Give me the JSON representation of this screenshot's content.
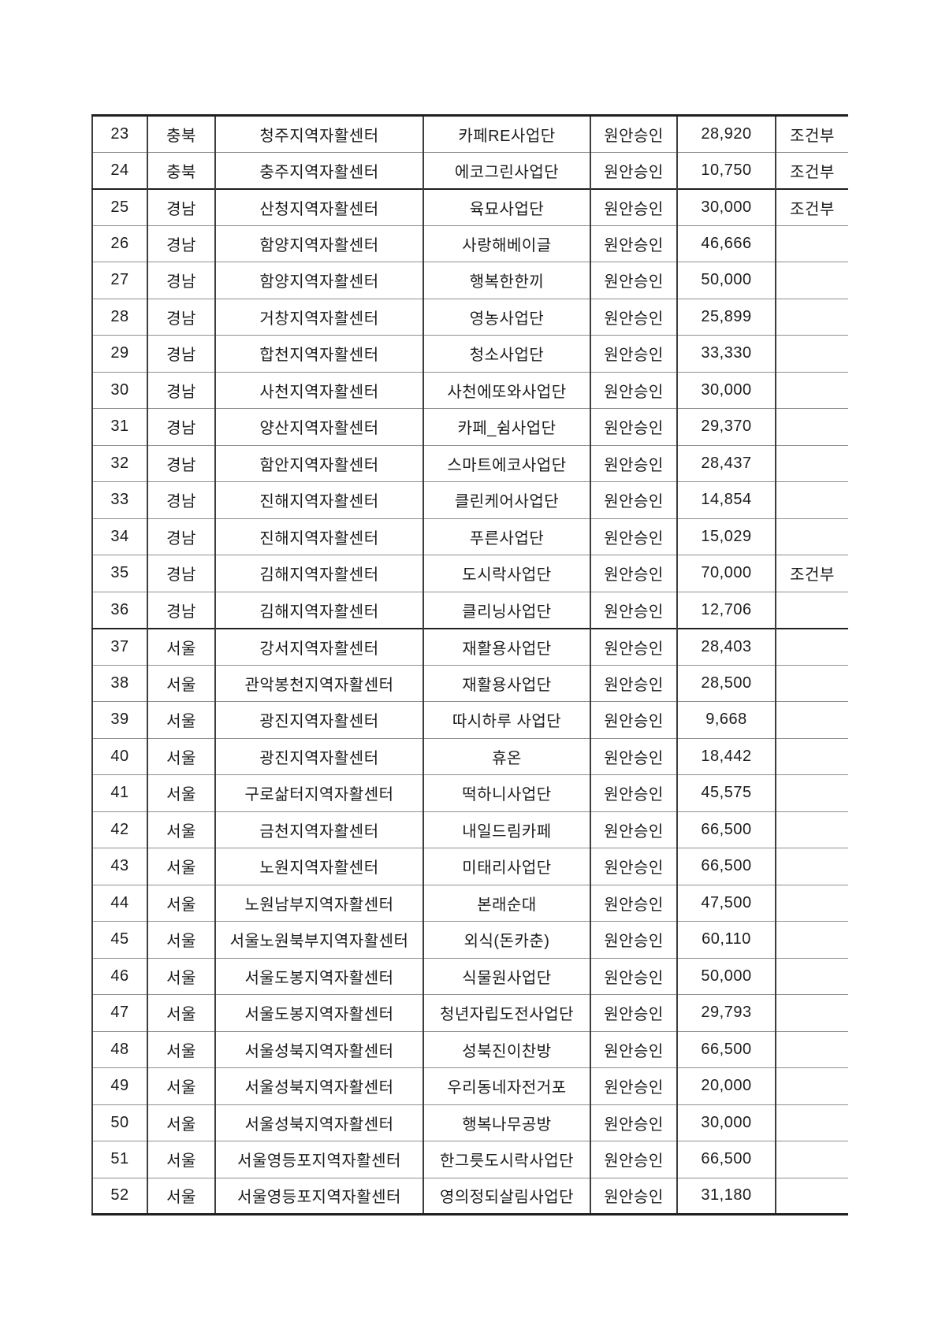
{
  "table": {
    "region_label_chungbuk": "충북",
    "region_label_gyeongnam": "경남",
    "region_label_seoul": "서울",
    "approval_value": "원안승인",
    "note_value_conditional": "조건부",
    "rows": [
      {
        "no": "23",
        "region": "충북",
        "center": "청주지역자활센터",
        "project": "카페RE사업단",
        "approval": "원안승인",
        "amount": "28,920",
        "note": "조건부"
      },
      {
        "no": "24",
        "region": "충북",
        "center": "충주지역자활센터",
        "project": "에코그린사업단",
        "approval": "원안승인",
        "amount": "10,750",
        "note": "조건부"
      },
      {
        "no": "25",
        "region": "경남",
        "center": "산청지역자활센터",
        "project": "육묘사업단",
        "approval": "원안승인",
        "amount": "30,000",
        "note": "조건부"
      },
      {
        "no": "26",
        "region": "경남",
        "center": "함양지역자활센터",
        "project": "사랑해베이글",
        "approval": "원안승인",
        "amount": "46,666",
        "note": ""
      },
      {
        "no": "27",
        "region": "경남",
        "center": "함양지역자활센터",
        "project": "행복한한끼",
        "approval": "원안승인",
        "amount": "50,000",
        "note": ""
      },
      {
        "no": "28",
        "region": "경남",
        "center": "거창지역자활센터",
        "project": "영농사업단",
        "approval": "원안승인",
        "amount": "25,899",
        "note": ""
      },
      {
        "no": "29",
        "region": "경남",
        "center": "합천지역자활센터",
        "project": "청소사업단",
        "approval": "원안승인",
        "amount": "33,330",
        "note": ""
      },
      {
        "no": "30",
        "region": "경남",
        "center": "사천지역자활센터",
        "project": "사천에또와사업단",
        "approval": "원안승인",
        "amount": "30,000",
        "note": ""
      },
      {
        "no": "31",
        "region": "경남",
        "center": "양산지역자활센터",
        "project": "카페_쉼사업단",
        "approval": "원안승인",
        "amount": "29,370",
        "note": ""
      },
      {
        "no": "32",
        "region": "경남",
        "center": "함안지역자활센터",
        "project": "스마트에코사업단",
        "approval": "원안승인",
        "amount": "28,437",
        "note": ""
      },
      {
        "no": "33",
        "region": "경남",
        "center": "진해지역자활센터",
        "project": "클린케어사업단",
        "approval": "원안승인",
        "amount": "14,854",
        "note": ""
      },
      {
        "no": "34",
        "region": "경남",
        "center": "진해지역자활센터",
        "project": "푸른사업단",
        "approval": "원안승인",
        "amount": "15,029",
        "note": ""
      },
      {
        "no": "35",
        "region": "경남",
        "center": "김해지역자활센터",
        "project": "도시락사업단",
        "approval": "원안승인",
        "amount": "70,000",
        "note": "조건부"
      },
      {
        "no": "36",
        "region": "경남",
        "center": "김해지역자활센터",
        "project": "클리닝사업단",
        "approval": "원안승인",
        "amount": "12,706",
        "note": ""
      },
      {
        "no": "37",
        "region": "서울",
        "center": "강서지역자활센터",
        "project": "재활용사업단",
        "approval": "원안승인",
        "amount": "28,403",
        "note": ""
      },
      {
        "no": "38",
        "region": "서울",
        "center": "관악봉천지역자활센터",
        "project": "재활용사업단",
        "approval": "원안승인",
        "amount": "28,500",
        "note": ""
      },
      {
        "no": "39",
        "region": "서울",
        "center": "광진지역자활센터",
        "project": "따시하루 사업단",
        "approval": "원안승인",
        "amount": "9,668",
        "note": ""
      },
      {
        "no": "40",
        "region": "서울",
        "center": "광진지역자활센터",
        "project": "휴온",
        "approval": "원안승인",
        "amount": "18,442",
        "note": ""
      },
      {
        "no": "41",
        "region": "서울",
        "center": "구로삶터지역자활센터",
        "project": "떡하니사업단",
        "approval": "원안승인",
        "amount": "45,575",
        "note": ""
      },
      {
        "no": "42",
        "region": "서울",
        "center": "금천지역자활센터",
        "project": "내일드림카페",
        "approval": "원안승인",
        "amount": "66,500",
        "note": ""
      },
      {
        "no": "43",
        "region": "서울",
        "center": "노원지역자활센터",
        "project": "미태리사업단",
        "approval": "원안승인",
        "amount": "66,500",
        "note": ""
      },
      {
        "no": "44",
        "region": "서울",
        "center": "노원남부지역자활센터",
        "project": "본래순대",
        "approval": "원안승인",
        "amount": "47,500",
        "note": ""
      },
      {
        "no": "45",
        "region": "서울",
        "center": "서울노원북부지역자활센터",
        "project": "외식(돈카춘)",
        "approval": "원안승인",
        "amount": "60,110",
        "note": ""
      },
      {
        "no": "46",
        "region": "서울",
        "center": "서울도봉지역자활센터",
        "project": "식물원사업단",
        "approval": "원안승인",
        "amount": "50,000",
        "note": ""
      },
      {
        "no": "47",
        "region": "서울",
        "center": "서울도봉지역자활센터",
        "project": "청년자립도전사업단",
        "approval": "원안승인",
        "amount": "29,793",
        "note": ""
      },
      {
        "no": "48",
        "region": "서울",
        "center": "서울성북지역자활센터",
        "project": "성북진이찬방",
        "approval": "원안승인",
        "amount": "66,500",
        "note": ""
      },
      {
        "no": "49",
        "region": "서울",
        "center": "서울성북지역자활센터",
        "project": "우리동네자전거포",
        "approval": "원안승인",
        "amount": "20,000",
        "note": ""
      },
      {
        "no": "50",
        "region": "서울",
        "center": "서울성북지역자활센터",
        "project": "행복나무공방",
        "approval": "원안승인",
        "amount": "30,000",
        "note": ""
      },
      {
        "no": "51",
        "region": "서울",
        "center": "서울영등포지역자활센터",
        "project": "한그릇도시락사업단",
        "approval": "원안승인",
        "amount": "66,500",
        "note": ""
      },
      {
        "no": "52",
        "region": "서울",
        "center": "서울영등포지역자활센터",
        "project": "영의정되살림사업단",
        "approval": "원안승인",
        "amount": "31,180",
        "note": ""
      }
    ]
  }
}
